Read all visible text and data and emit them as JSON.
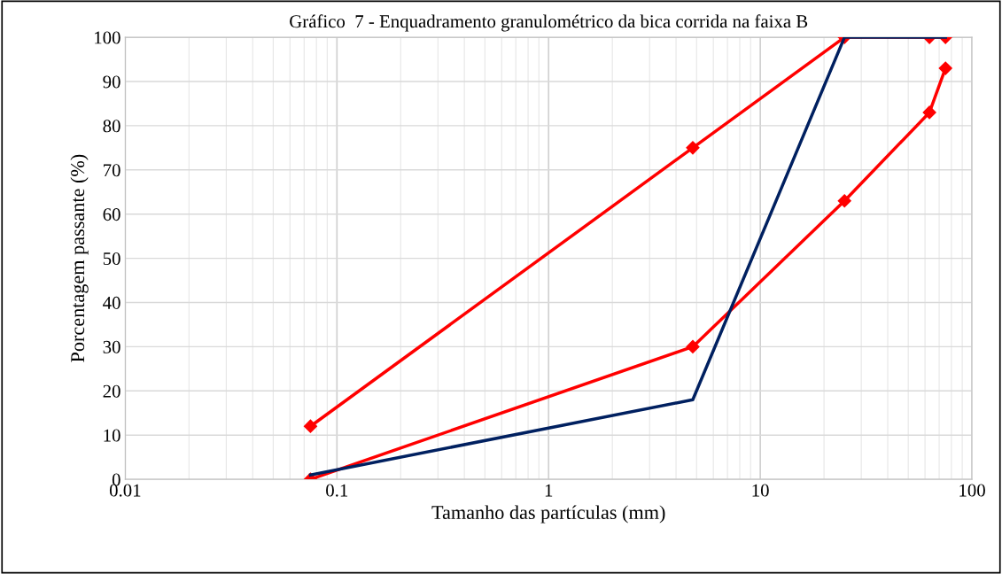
{
  "chart_data": {
    "type": "line",
    "title": "Gráfico  7 - Enquadramento granulométrico da bica corrida na faixa B",
    "xlabel": "Tamanho das partículas (mm)",
    "ylabel": "Porcentagem passante (%)",
    "log": "x",
    "xlim": [
      0.01,
      100
    ],
    "xticks": [
      0.01,
      0.1,
      1,
      10,
      100
    ],
    "ylim": [
      0,
      100
    ],
    "yticks": [
      0,
      10,
      20,
      30,
      40,
      50,
      60,
      70,
      80,
      90,
      100
    ],
    "grid": true,
    "legend": false,
    "line_style": "solid",
    "series": [
      {
        "color": "#ff0000",
        "marker": "diamond",
        "x": [
          0.075,
          4.8,
          25,
          63,
          75
        ],
        "values": [
          12,
          75,
          100,
          100,
          100
        ]
      },
      {
        "color": "#ff0000",
        "marker": "diamond",
        "x": [
          0.075,
          4.8,
          25,
          63,
          75
        ],
        "values": [
          0,
          30,
          63,
          83,
          93
        ]
      },
      {
        "color": "#002060",
        "marker": "none",
        "x": [
          0.075,
          4.8,
          25,
          75
        ],
        "values": [
          1,
          18,
          100,
          100
        ]
      }
    ]
  }
}
